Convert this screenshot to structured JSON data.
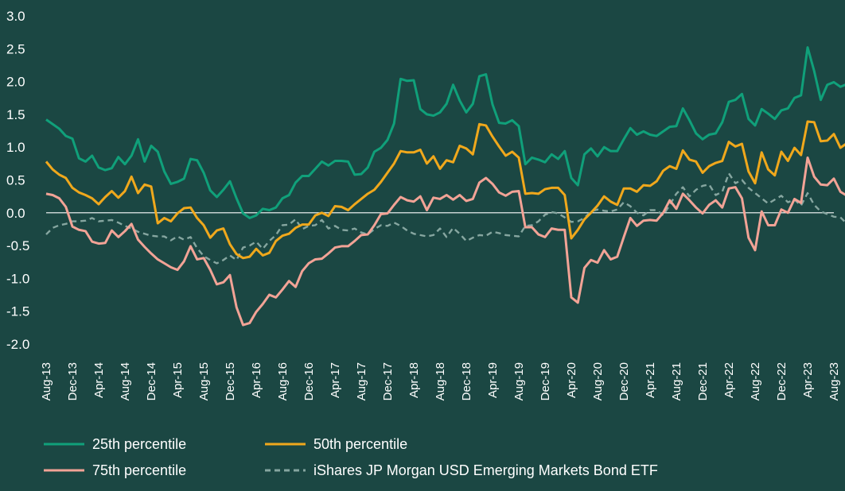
{
  "chart_data": {
    "type": "line",
    "title": "",
    "xlabel": "",
    "ylabel": "",
    "ylim": [
      -2.0,
      3.0
    ],
    "yticks": [
      "3.0",
      "2.5",
      "2.0",
      "1.5",
      "1.0",
      "0.5",
      "0.0",
      "-0.5",
      "-1.0",
      "-1.5",
      "-2.0"
    ],
    "ytick_values": [
      3.0,
      2.5,
      2.0,
      1.5,
      1.0,
      0.5,
      0.0,
      -0.5,
      -1.0,
      -1.5,
      -2.0
    ],
    "xticks": [
      "Aug-13",
      "Dec-13",
      "Apr-14",
      "Aug-14",
      "Dec-14",
      "Apr-15",
      "Aug-15",
      "Dec-15",
      "Apr-16",
      "Aug-16",
      "Dec-16",
      "Apr-17",
      "Aug-17",
      "Dec-17",
      "Apr-18",
      "Aug-18",
      "Dec-18",
      "Apr-19",
      "Aug-19",
      "Dec-19",
      "Apr-20",
      "Aug-20",
      "Dec-20",
      "Apr-21",
      "Aug-21",
      "Dec-21",
      "Apr-22",
      "Aug-22",
      "Dec-22",
      "Apr-23",
      "Aug-23"
    ],
    "xtick_index": [
      0,
      4,
      8,
      12,
      16,
      20,
      24,
      28,
      32,
      36,
      40,
      44,
      48,
      52,
      56,
      60,
      64,
      68,
      72,
      76,
      80,
      84,
      88,
      92,
      96,
      100,
      104,
      108,
      112,
      116,
      120
    ],
    "n_points": 121,
    "zero_line": true,
    "legend_position": "bottom",
    "series": [
      {
        "name": "25th percentile",
        "color": "#10a07a",
        "dash": false,
        "values": [
          1.42,
          1.35,
          1.28,
          1.17,
          1.13,
          0.83,
          0.78,
          0.87,
          0.69,
          0.65,
          0.68,
          0.85,
          0.74,
          0.87,
          1.12,
          0.78,
          1.02,
          0.93,
          0.63,
          0.44,
          0.47,
          0.52,
          0.82,
          0.8,
          0.61,
          0.34,
          0.24,
          0.35,
          0.48,
          0.22,
          -0.01,
          -0.08,
          -0.04,
          0.06,
          0.04,
          0.08,
          0.22,
          0.27,
          0.46,
          0.56,
          0.56,
          0.67,
          0.78,
          0.72,
          0.79,
          0.79,
          0.78,
          0.58,
          0.59,
          0.69,
          0.93,
          0.99,
          1.11,
          1.36,
          2.04,
          2.01,
          2.02,
          1.58,
          1.5,
          1.48,
          1.53,
          1.66,
          1.95,
          1.71,
          1.53,
          1.66,
          2.08,
          2.11,
          1.65,
          1.37,
          1.36,
          1.41,
          1.32,
          0.74,
          0.84,
          0.81,
          0.77,
          0.89,
          0.82,
          0.94,
          0.53,
          0.42,
          0.89,
          0.98,
          0.86,
          1.0,
          0.94,
          0.94,
          1.12,
          1.29,
          1.19,
          1.24,
          1.19,
          1.17,
          1.24,
          1.31,
          1.32,
          1.59,
          1.41,
          1.21,
          1.12,
          1.19,
          1.21,
          1.38,
          1.69,
          1.72,
          1.81,
          1.43,
          1.33,
          1.58,
          1.51,
          1.43,
          1.56,
          1.59,
          1.75,
          1.79,
          2.52,
          2.16,
          1.72,
          1.95,
          1.99,
          1.92,
          1.96
        ]
      },
      {
        "name": "50th percentile",
        "color": "#f0a81c",
        "dash": false,
        "values": [
          0.78,
          0.66,
          0.58,
          0.53,
          0.38,
          0.31,
          0.27,
          0.22,
          0.13,
          0.24,
          0.33,
          0.23,
          0.33,
          0.55,
          0.3,
          0.43,
          0.4,
          -0.16,
          -0.08,
          -0.13,
          -0.01,
          0.07,
          0.08,
          -0.08,
          -0.19,
          -0.38,
          -0.27,
          -0.24,
          -0.48,
          -0.63,
          -0.69,
          -0.67,
          -0.55,
          -0.65,
          -0.61,
          -0.43,
          -0.35,
          -0.32,
          -0.23,
          -0.18,
          -0.18,
          -0.04,
          0.0,
          -0.05,
          0.1,
          0.09,
          0.04,
          0.13,
          0.21,
          0.29,
          0.35,
          0.47,
          0.61,
          0.75,
          0.94,
          0.92,
          0.92,
          0.96,
          0.75,
          0.86,
          0.67,
          0.8,
          0.77,
          1.02,
          0.98,
          0.89,
          1.35,
          1.33,
          1.16,
          1.01,
          0.87,
          0.93,
          0.84,
          0.29,
          0.3,
          0.29,
          0.36,
          0.38,
          0.38,
          0.27,
          -0.39,
          -0.26,
          -0.1,
          0.0,
          0.11,
          0.25,
          0.17,
          0.12,
          0.37,
          0.37,
          0.32,
          0.42,
          0.41,
          0.48,
          0.64,
          0.71,
          0.67,
          0.95,
          0.81,
          0.78,
          0.61,
          0.71,
          0.76,
          0.79,
          1.08,
          1.01,
          1.05,
          0.63,
          0.45,
          0.92,
          0.66,
          0.57,
          0.93,
          0.79,
          0.99,
          0.88,
          1.39,
          1.38,
          1.09,
          1.1,
          1.2,
          0.99,
          1.06
        ]
      },
      {
        "name": "75th percentile",
        "color": "#f2a396",
        "dash": false,
        "values": [
          0.29,
          0.27,
          0.22,
          0.09,
          -0.21,
          -0.26,
          -0.28,
          -0.44,
          -0.47,
          -0.46,
          -0.27,
          -0.37,
          -0.28,
          -0.17,
          -0.41,
          -0.52,
          -0.62,
          -0.71,
          -0.77,
          -0.83,
          -0.87,
          -0.74,
          -0.51,
          -0.71,
          -0.69,
          -0.87,
          -1.09,
          -1.06,
          -0.95,
          -1.44,
          -1.71,
          -1.68,
          -1.51,
          -1.39,
          -1.25,
          -1.29,
          -1.17,
          -1.04,
          -1.13,
          -0.89,
          -0.77,
          -0.71,
          -0.7,
          -0.62,
          -0.53,
          -0.51,
          -0.51,
          -0.43,
          -0.34,
          -0.33,
          -0.19,
          -0.02,
          -0.01,
          0.12,
          0.24,
          0.19,
          0.17,
          0.25,
          0.04,
          0.23,
          0.21,
          0.27,
          0.2,
          0.27,
          0.18,
          0.21,
          0.46,
          0.53,
          0.44,
          0.31,
          0.26,
          0.32,
          0.33,
          -0.22,
          -0.22,
          -0.33,
          -0.37,
          -0.24,
          -0.26,
          -0.26,
          -1.29,
          -1.37,
          -0.84,
          -0.72,
          -0.76,
          -0.57,
          -0.71,
          -0.67,
          -0.37,
          -0.08,
          -0.2,
          -0.12,
          -0.11,
          -0.12,
          0.0,
          0.19,
          0.06,
          0.29,
          0.19,
          0.08,
          -0.01,
          0.12,
          0.19,
          0.08,
          0.37,
          0.39,
          0.22,
          -0.38,
          -0.57,
          0.02,
          -0.19,
          -0.19,
          0.05,
          0.0,
          0.21,
          0.15,
          0.84,
          0.55,
          0.43,
          0.42,
          0.52,
          0.32,
          0.26
        ]
      },
      {
        "name": "iShares JP Morgan USD Emerging Markets Bond ETF",
        "color": "#86a6a0",
        "dash": true,
        "values": [
          -0.33,
          -0.23,
          -0.19,
          -0.17,
          -0.13,
          -0.13,
          -0.12,
          -0.08,
          -0.13,
          -0.12,
          -0.11,
          -0.15,
          -0.2,
          -0.24,
          -0.29,
          -0.32,
          -0.35,
          -0.36,
          -0.36,
          -0.42,
          -0.36,
          -0.41,
          -0.37,
          -0.54,
          -0.66,
          -0.72,
          -0.77,
          -0.72,
          -0.65,
          -0.72,
          -0.53,
          -0.5,
          -0.44,
          -0.55,
          -0.43,
          -0.34,
          -0.19,
          -0.18,
          -0.1,
          -0.25,
          -0.2,
          -0.19,
          -0.11,
          -0.24,
          -0.2,
          -0.26,
          -0.27,
          -0.24,
          -0.3,
          -0.33,
          -0.25,
          -0.19,
          -0.2,
          -0.15,
          -0.2,
          -0.27,
          -0.32,
          -0.34,
          -0.36,
          -0.34,
          -0.24,
          -0.37,
          -0.23,
          -0.32,
          -0.43,
          -0.38,
          -0.34,
          -0.35,
          -0.29,
          -0.31,
          -0.34,
          -0.35,
          -0.36,
          -0.2,
          -0.19,
          -0.13,
          -0.03,
          0.01,
          -0.01,
          -0.07,
          -0.14,
          -0.13,
          -0.08,
          0.02,
          0.05,
          0.03,
          0.02,
          0.05,
          0.16,
          0.1,
          0.0,
          -0.04,
          0.04,
          0.04,
          -0.04,
          0.12,
          0.29,
          0.39,
          0.25,
          0.35,
          0.41,
          0.43,
          0.27,
          0.32,
          0.6,
          0.45,
          0.5,
          0.38,
          0.3,
          0.22,
          0.14,
          0.2,
          0.26,
          0.16,
          0.2,
          0.11,
          0.3,
          0.12,
          0.02,
          -0.02,
          -0.06,
          -0.07,
          -0.17
        ]
      }
    ]
  }
}
